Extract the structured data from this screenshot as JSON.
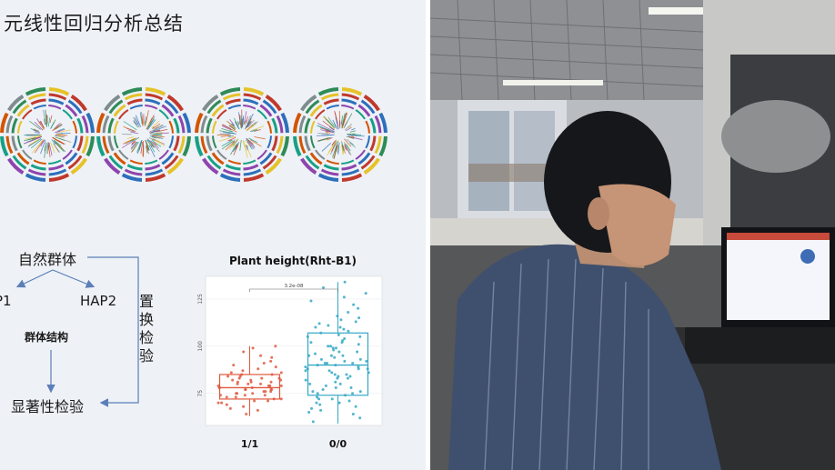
{
  "slide": {
    "title": "元线性回归分析总结",
    "flowchart": {
      "population": "自然群体",
      "hap1": "P1",
      "hap2": "HAP2",
      "structure": "群体结构",
      "significance": "显著性检验",
      "permutation": "置换检验"
    }
  },
  "colors": {
    "group_a": "#e0583e",
    "group_b": "#34a8c4",
    "arrow": "#5b7fb8"
  },
  "chart_data": {
    "type": "box",
    "title": "Plant height(Rht-B1)",
    "xlabel": "",
    "ylabel": "",
    "categories": [
      "1/1",
      "0/0"
    ],
    "ylim": [
      58,
      137
    ],
    "yticks": [
      75,
      100,
      125
    ],
    "significance": "3.2e-08",
    "series": [
      {
        "category": "1/1",
        "q1": 72,
        "median": 78,
        "q3": 85,
        "whisker_low": 63,
        "whisker_high": 100,
        "points": [
          64,
          66,
          67,
          68,
          69,
          70,
          71,
          71,
          72,
          72,
          73,
          73,
          74,
          74,
          75,
          75,
          75,
          76,
          76,
          77,
          77,
          77,
          78,
          78,
          78,
          79,
          79,
          79,
          80,
          80,
          80,
          81,
          81,
          82,
          82,
          83,
          83,
          84,
          84,
          85,
          85,
          86,
          86,
          87,
          88,
          89,
          90,
          91,
          92,
          94,
          95,
          97,
          99,
          100,
          70,
          76,
          79,
          82,
          74,
          77,
          81,
          83
        ]
      },
      {
        "category": "0/0",
        "q1": 74,
        "median": 90,
        "q3": 107,
        "whisker_low": 59,
        "whisker_high": 134,
        "points": [
          60,
          62,
          64,
          65,
          66,
          67,
          68,
          69,
          70,
          71,
          72,
          72,
          73,
          74,
          75,
          75,
          76,
          77,
          78,
          79,
          80,
          80,
          81,
          82,
          83,
          84,
          84,
          85,
          86,
          86,
          87,
          88,
          88,
          89,
          89,
          90,
          90,
          91,
          91,
          92,
          92,
          93,
          94,
          95,
          95,
          96,
          97,
          98,
          99,
          100,
          100,
          101,
          102,
          103,
          104,
          105,
          106,
          107,
          108,
          109,
          110,
          111,
          112,
          113,
          114,
          115,
          116,
          118,
          120,
          122,
          124,
          126,
          128,
          131,
          134,
          78,
          85,
          93,
          97,
          102,
          88,
          91,
          83,
          76,
          99,
          105,
          70,
          95,
          87,
          110
        ]
      }
    ]
  }
}
